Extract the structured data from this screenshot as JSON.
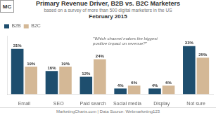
{
  "chart_data": {
    "type": "bar",
    "title": "Primary Revenue Driver, B2B vs. B2C Marketers",
    "subtitle": "based on a survey of more than 500 digital marketers in the US",
    "annotations": [
      "February 2015",
      "\"Which channel makes the biggest\npositive impact on revenue?\"",
      "MarketingCharts.com  |  Data Source: Webmarketing123",
      "MC"
    ],
    "categories": [
      "Email",
      "SEO",
      "Paid search",
      "Social media",
      "Display",
      "Not sure"
    ],
    "series": [
      {
        "name": "B2B",
        "color": "#1e4e6e",
        "values": [
          31,
          16,
          12,
          4,
          4,
          33
        ],
        "value_labels": [
          "31%",
          "16%",
          "12%",
          "4%",
          "4%",
          "33%"
        ]
      },
      {
        "name": "B2C",
        "color": "#d4b896",
        "values": [
          19,
          19,
          24,
          6,
          6,
          25
        ],
        "value_labels": [
          "19%",
          "19%",
          "24%",
          "6%",
          "6%",
          "25%"
        ]
      }
    ],
    "ylim": [
      0,
      40
    ],
    "legend": "upper left",
    "data_labels": true,
    "tick_labels": "x",
    "grid": false
  }
}
